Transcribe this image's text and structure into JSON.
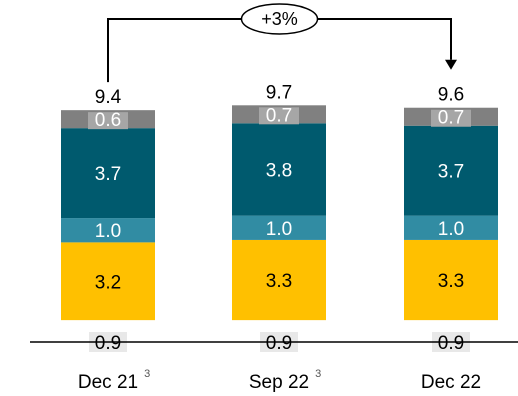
{
  "chart_data": {
    "type": "bar",
    "stacked": true,
    "categories": [
      "Dec 21",
      "Sep 22",
      "Dec 22"
    ],
    "category_superscripts": [
      "3",
      "3",
      ""
    ],
    "series": [
      {
        "color": "#e8e8e8",
        "values": [
          0.9,
          0.9,
          0.9
        ]
      },
      {
        "color": "#ffc000",
        "values": [
          3.2,
          3.3,
          3.3
        ]
      },
      {
        "color": "#318ca3",
        "values": [
          1.0,
          1.0,
          1.0
        ]
      },
      {
        "color": "#005a6e",
        "values": [
          3.7,
          3.8,
          3.7
        ]
      },
      {
        "color": "#808080",
        "values": [
          0.6,
          0.7,
          0.7
        ]
      }
    ],
    "value_labels": [
      [
        "0.9",
        "3.2",
        "1.0",
        "3.7",
        "0.6"
      ],
      [
        "0.9",
        "3.3",
        "1.0",
        "3.8",
        "0.7"
      ],
      [
        "0.9",
        "3.3",
        "1.0",
        "3.7",
        "0.7"
      ]
    ],
    "totals": [
      9.4,
      9.7,
      9.6
    ],
    "total_labels": [
      "9.4",
      "9.7",
      "9.6"
    ],
    "growth": {
      "label": "+3%",
      "from": "Dec 21",
      "to": "Dec 22"
    },
    "grid": false,
    "legend": "none"
  }
}
